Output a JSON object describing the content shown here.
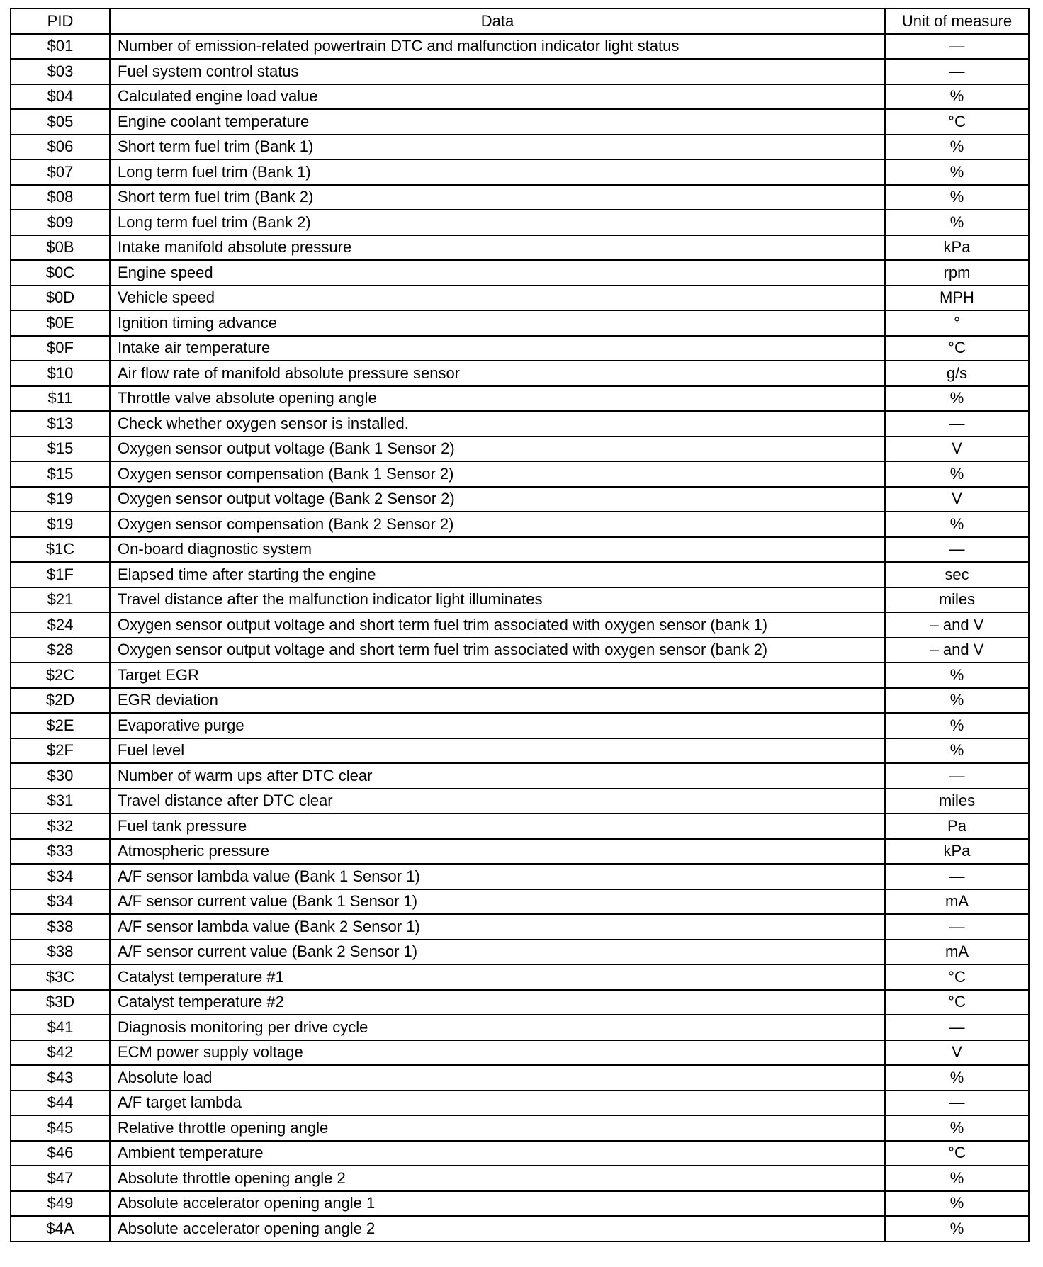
{
  "headers": {
    "pid": "PID",
    "data": "Data",
    "unit": "Unit of measure"
  },
  "rows": [
    {
      "pid": "$01",
      "data": "Number of emission-related powertrain DTC and malfunction indicator light status",
      "unit": "—"
    },
    {
      "pid": "$03",
      "data": "Fuel system control status",
      "unit": "—"
    },
    {
      "pid": "$04",
      "data": "Calculated engine load value",
      "unit": "%"
    },
    {
      "pid": "$05",
      "data": "Engine coolant temperature",
      "unit": "°C"
    },
    {
      "pid": "$06",
      "data": "Short term fuel trim (Bank 1)",
      "unit": "%"
    },
    {
      "pid": "$07",
      "data": "Long term fuel trim (Bank 1)",
      "unit": "%"
    },
    {
      "pid": "$08",
      "data": "Short term fuel trim (Bank 2)",
      "unit": "%"
    },
    {
      "pid": "$09",
      "data": "Long term fuel trim (Bank 2)",
      "unit": "%"
    },
    {
      "pid": "$0B",
      "data": "Intake manifold absolute pressure",
      "unit": "kPa"
    },
    {
      "pid": "$0C",
      "data": "Engine speed",
      "unit": "rpm"
    },
    {
      "pid": "$0D",
      "data": "Vehicle speed",
      "unit": "MPH"
    },
    {
      "pid": "$0E",
      "data": "Ignition timing advance",
      "unit": "°"
    },
    {
      "pid": "$0F",
      "data": "Intake air temperature",
      "unit": "°C"
    },
    {
      "pid": "$10",
      "data": "Air flow rate of manifold absolute pressure sensor",
      "unit": "g/s"
    },
    {
      "pid": "$11",
      "data": "Throttle valve absolute opening angle",
      "unit": "%"
    },
    {
      "pid": "$13",
      "data": "Check whether oxygen sensor is installed.",
      "unit": "—"
    },
    {
      "pid": "$15",
      "data": "Oxygen sensor output voltage (Bank 1 Sensor 2)",
      "unit": "V"
    },
    {
      "pid": "$15",
      "data": "Oxygen sensor compensation (Bank 1 Sensor 2)",
      "unit": "%"
    },
    {
      "pid": "$19",
      "data": "Oxygen sensor output voltage (Bank 2 Sensor 2)",
      "unit": "V"
    },
    {
      "pid": "$19",
      "data": "Oxygen sensor compensation (Bank 2 Sensor 2)",
      "unit": "%"
    },
    {
      "pid": "$1C",
      "data": "On-board diagnostic system",
      "unit": "—"
    },
    {
      "pid": "$1F",
      "data": "Elapsed time after starting the engine",
      "unit": "sec"
    },
    {
      "pid": "$21",
      "data": "Travel distance after the malfunction indicator light illuminates",
      "unit": "miles"
    },
    {
      "pid": "$24",
      "data": "Oxygen sensor output voltage and short term fuel trim associated with oxygen sensor (bank 1)",
      "unit": "– and V"
    },
    {
      "pid": "$28",
      "data": "Oxygen sensor output voltage and short term fuel trim associated with oxygen sensor (bank 2)",
      "unit": "– and V"
    },
    {
      "pid": "$2C",
      "data": "Target EGR",
      "unit": "%"
    },
    {
      "pid": "$2D",
      "data": "EGR deviation",
      "unit": "%"
    },
    {
      "pid": "$2E",
      "data": "Evaporative purge",
      "unit": "%"
    },
    {
      "pid": "$2F",
      "data": "Fuel level",
      "unit": "%"
    },
    {
      "pid": "$30",
      "data": "Number of warm ups after DTC clear",
      "unit": "—"
    },
    {
      "pid": "$31",
      "data": "Travel distance after DTC clear",
      "unit": "miles"
    },
    {
      "pid": "$32",
      "data": "Fuel tank pressure",
      "unit": "Pa"
    },
    {
      "pid": "$33",
      "data": "Atmospheric pressure",
      "unit": "kPa"
    },
    {
      "pid": "$34",
      "data": "A/F sensor lambda value (Bank 1 Sensor 1)",
      "unit": "—"
    },
    {
      "pid": "$34",
      "data": "A/F sensor current value (Bank 1 Sensor 1)",
      "unit": "mA"
    },
    {
      "pid": "$38",
      "data": "A/F sensor lambda value (Bank 2 Sensor 1)",
      "unit": "—"
    },
    {
      "pid": "$38",
      "data": "A/F sensor current value (Bank 2 Sensor 1)",
      "unit": "mA"
    },
    {
      "pid": "$3C",
      "data": "Catalyst temperature #1",
      "unit": "°C"
    },
    {
      "pid": "$3D",
      "data": "Catalyst temperature #2",
      "unit": "°C"
    },
    {
      "pid": "$41",
      "data": "Diagnosis monitoring per drive cycle",
      "unit": "—"
    },
    {
      "pid": "$42",
      "data": "ECM power supply voltage",
      "unit": "V"
    },
    {
      "pid": "$43",
      "data": "Absolute load",
      "unit": "%"
    },
    {
      "pid": "$44",
      "data": "A/F target lambda",
      "unit": "—"
    },
    {
      "pid": "$45",
      "data": "Relative throttle opening angle",
      "unit": "%"
    },
    {
      "pid": "$46",
      "data": "Ambient temperature",
      "unit": "°C"
    },
    {
      "pid": "$47",
      "data": "Absolute throttle opening angle 2",
      "unit": "%"
    },
    {
      "pid": "$49",
      "data": "Absolute accelerator opening angle 1",
      "unit": "%"
    },
    {
      "pid": "$4A",
      "data": "Absolute accelerator opening angle 2",
      "unit": "%"
    }
  ]
}
